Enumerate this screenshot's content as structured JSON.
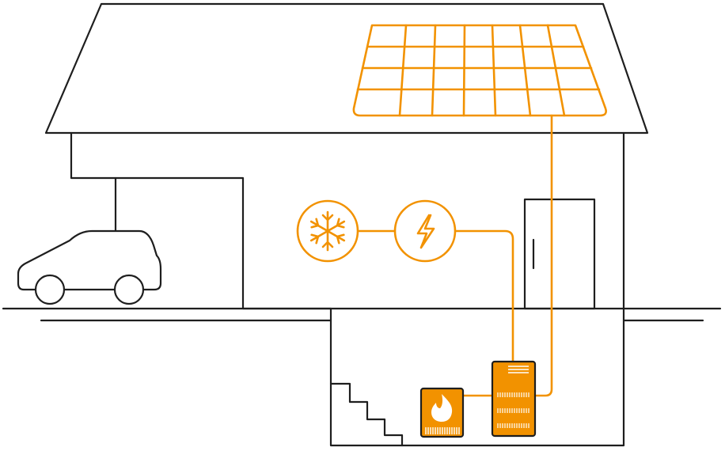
{
  "colors": {
    "accent": "#f29200",
    "line": "#1e1e1e",
    "background": "#ffffff"
  },
  "icons": {
    "cooling": "snowflake-icon",
    "electricity": "lightning-bolt-icon",
    "heating": "flame-icon"
  }
}
